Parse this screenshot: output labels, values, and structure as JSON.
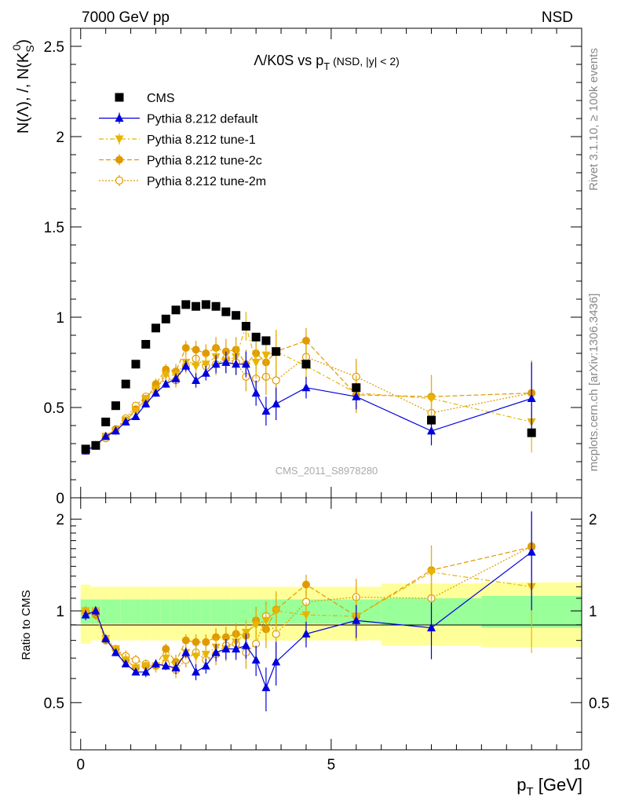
{
  "header": {
    "left": "7000 GeV pp",
    "right": "NSD"
  },
  "side_text": {
    "rivet": "Rivet 3.1.10, ≥ 100k events",
    "mcplots": "mcplots.cern.ch [arXiv:1306.3436]"
  },
  "chart_data": {
    "type": "scatter",
    "title": "Λ/K0S vs p_T (NSD, |y| < 2)",
    "watermark": "CMS_2011_S8978280",
    "xlabel": "p_T [GeV]",
    "ylabel_main": "N(Λ), /, N(K_S^0)",
    "ylabel_ratio": "Ratio to CMS",
    "xlim": [
      -0.2,
      10
    ],
    "main_ylim": [
      0,
      2.6
    ],
    "ratio_ylim": [
      0.35,
      2.35
    ],
    "ratio_log": true,
    "x_ticks": [
      "0",
      "5",
      "10"
    ],
    "main_y_ticks": [
      "0",
      "0.5",
      "1",
      "1.5",
      "2",
      "2.5"
    ],
    "ratio_y_ticks": [
      "0.5",
      "1",
      "2"
    ],
    "x": [
      0.1,
      0.3,
      0.5,
      0.7,
      0.9,
      1.1,
      1.3,
      1.5,
      1.7,
      1.9,
      2.1,
      2.3,
      2.5,
      2.7,
      2.9,
      3.1,
      3.3,
      3.5,
      3.7,
      3.9,
      4.5,
      5.5,
      7.0,
      9.0
    ],
    "bins": [
      0,
      0.2,
      0.4,
      0.6,
      0.8,
      1.0,
      1.2,
      1.4,
      1.6,
      1.8,
      2.0,
      2.2,
      2.4,
      2.6,
      2.8,
      3.0,
      3.2,
      3.4,
      3.6,
      3.8,
      4.0,
      5.0,
      6.0,
      8.0,
      10.0
    ],
    "legend_position": "top-left",
    "series": [
      {
        "name": "CMS",
        "color": "#000000",
        "marker": "square",
        "line": "none",
        "values": [
          0.27,
          0.29,
          0.42,
          0.51,
          0.63,
          0.74,
          0.85,
          0.94,
          0.99,
          1.04,
          1.07,
          1.06,
          1.07,
          1.06,
          1.03,
          1.01,
          0.95,
          0.89,
          0.87,
          0.81,
          0.74,
          0.61,
          0.43,
          0.36
        ]
      },
      {
        "name": "Pythia 8.212 default",
        "color": "#0000dd",
        "marker": "triangle-up",
        "line": "solid",
        "values": [
          0.26,
          0.29,
          0.34,
          0.37,
          0.42,
          0.45,
          0.52,
          0.58,
          0.63,
          0.66,
          0.73,
          0.65,
          0.69,
          0.74,
          0.75,
          0.74,
          0.74,
          0.58,
          0.48,
          0.52,
          0.61,
          0.56,
          0.37,
          0.55
        ],
        "errors": [
          0.01,
          0.01,
          0.01,
          0.01,
          0.01,
          0.01,
          0.02,
          0.02,
          0.02,
          0.03,
          0.03,
          0.04,
          0.04,
          0.05,
          0.06,
          0.06,
          0.07,
          0.07,
          0.08,
          0.09,
          0.06,
          0.07,
          0.08,
          0.2
        ],
        "ratio": [
          0.97,
          1.0,
          0.81,
          0.73,
          0.67,
          0.63,
          0.63,
          0.67,
          0.66,
          0.65,
          0.73,
          0.63,
          0.66,
          0.73,
          0.75,
          0.75,
          0.77,
          0.69,
          0.56,
          0.68,
          0.84,
          0.93,
          0.88,
          1.56
        ]
      },
      {
        "name": "Pythia 8.212 tune-1",
        "color": "#e8b400",
        "marker": "triangle-down",
        "line": "dashdot",
        "values": [
          0.27,
          0.29,
          0.34,
          0.37,
          0.43,
          0.48,
          0.55,
          0.6,
          0.68,
          0.68,
          0.75,
          0.73,
          0.74,
          0.78,
          0.76,
          0.78,
          0.95,
          0.75,
          0.79,
          0.81,
          0.73,
          0.58,
          0.55,
          0.42
        ],
        "errors": [
          0.01,
          0.01,
          0.01,
          0.01,
          0.02,
          0.02,
          0.02,
          0.03,
          0.03,
          0.04,
          0.04,
          0.05,
          0.05,
          0.06,
          0.07,
          0.07,
          0.08,
          0.09,
          0.1,
          0.12,
          0.07,
          0.1,
          0.12,
          0.17
        ],
        "ratio": [
          1.0,
          1.0,
          0.81,
          0.75,
          0.69,
          0.65,
          0.66,
          0.66,
          0.7,
          0.66,
          0.73,
          0.71,
          0.72,
          0.76,
          0.75,
          0.79,
          0.85,
          0.9,
          0.93,
          1.0,
          0.97,
          0.96,
          1.34,
          1.2
        ]
      },
      {
        "name": "Pythia 8.212 tune-2c",
        "color": "#e09a00",
        "marker": "circle",
        "line": "dashed",
        "values": [
          0.27,
          0.29,
          0.34,
          0.38,
          0.43,
          0.49,
          0.54,
          0.63,
          0.71,
          0.7,
          0.83,
          0.82,
          0.8,
          0.83,
          0.81,
          0.82,
          0.74,
          0.8,
          0.75,
          0.81,
          0.87,
          0.57,
          0.56,
          0.58
        ],
        "errors": [
          0.01,
          0.01,
          0.01,
          0.01,
          0.02,
          0.02,
          0.02,
          0.03,
          0.03,
          0.04,
          0.04,
          0.05,
          0.05,
          0.06,
          0.07,
          0.07,
          0.08,
          0.09,
          0.1,
          0.12,
          0.07,
          0.1,
          0.12,
          0.18
        ],
        "ratio": [
          1.0,
          0.97,
          0.8,
          0.75,
          0.69,
          0.65,
          0.66,
          0.66,
          0.75,
          0.68,
          0.8,
          0.79,
          0.79,
          0.82,
          0.82,
          0.84,
          0.83,
          0.93,
          0.87,
          1.01,
          1.22,
          0.96,
          1.36,
          1.62
        ]
      },
      {
        "name": "Pythia 8.212 tune-2m",
        "color": "#e09a00",
        "marker": "circle-open",
        "line": "dotted",
        "values": [
          0.26,
          0.29,
          0.33,
          0.38,
          0.44,
          0.51,
          0.56,
          0.61,
          0.66,
          0.65,
          0.73,
          0.77,
          0.73,
          0.74,
          0.77,
          0.75,
          0.67,
          0.66,
          0.67,
          0.65,
          0.78,
          0.67,
          0.47,
          0.58
        ],
        "errors": [
          0.01,
          0.01,
          0.01,
          0.01,
          0.02,
          0.02,
          0.02,
          0.03,
          0.03,
          0.04,
          0.04,
          0.05,
          0.05,
          0.06,
          0.07,
          0.07,
          0.08,
          0.09,
          0.1,
          0.12,
          0.07,
          0.1,
          0.12,
          0.18
        ],
        "ratio": [
          0.98,
          1.0,
          0.8,
          0.75,
          0.71,
          0.69,
          0.67,
          0.66,
          0.67,
          0.64,
          0.69,
          0.73,
          0.69,
          0.72,
          0.77,
          0.78,
          0.73,
          0.78,
          0.96,
          0.84,
          1.07,
          1.11,
          1.1,
          1.63
        ]
      }
    ],
    "ratio_bands": {
      "stat_color": "#99ff99",
      "syst_color": "#ffff99",
      "stat_half_width": [
        0.09,
        0.09,
        0.09,
        0.09,
        0.09,
        0.09,
        0.09,
        0.09,
        0.09,
        0.09,
        0.09,
        0.09,
        0.09,
        0.09,
        0.09,
        0.09,
        0.09,
        0.09,
        0.09,
        0.09,
        0.09,
        0.09,
        0.1,
        0.12
      ],
      "syst_half_width": [
        0.22,
        0.2,
        0.2,
        0.2,
        0.2,
        0.2,
        0.2,
        0.2,
        0.2,
        0.2,
        0.2,
        0.2,
        0.2,
        0.2,
        0.2,
        0.2,
        0.2,
        0.2,
        0.2,
        0.2,
        0.2,
        0.2,
        0.23,
        0.24
      ]
    }
  }
}
